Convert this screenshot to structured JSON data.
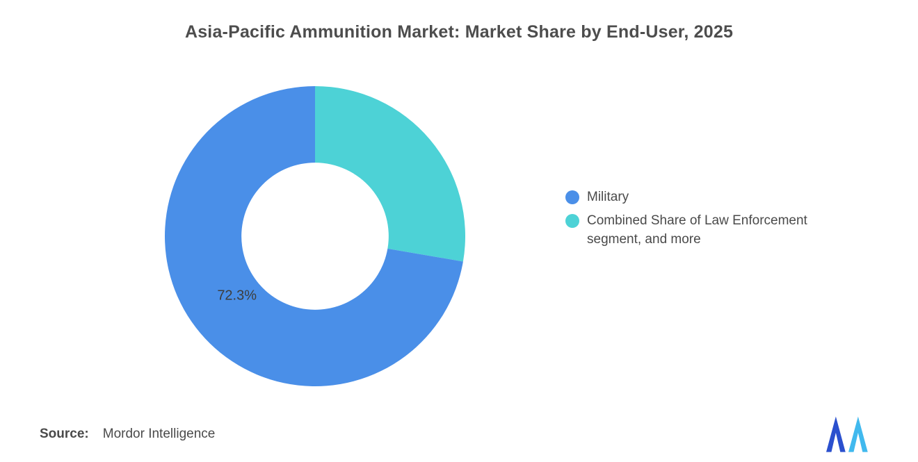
{
  "chart_data": {
    "type": "pie",
    "subtype": "donut",
    "title": "Asia-Pacific Ammunition Market: Market Share by End-User, 2025",
    "start_angle_deg": 0,
    "direction": "clockwise",
    "inner_radius_ratio": 0.49,
    "legend_position": "right",
    "slices": [
      {
        "label": "Combined Share of Law Enforcement segment, and more",
        "value": 27.7,
        "color": "#4DD2D6",
        "data_label": ""
      },
      {
        "label": "Military",
        "value": 72.3,
        "color": "#4A8FE8",
        "data_label": "72.3%"
      }
    ]
  },
  "source": {
    "prefix": "Source:",
    "name": "Mordor Intelligence"
  },
  "logo": {
    "icon": "mordor-intelligence-logo",
    "color_left": "#2B50CE",
    "color_right": "#41B9EE"
  }
}
